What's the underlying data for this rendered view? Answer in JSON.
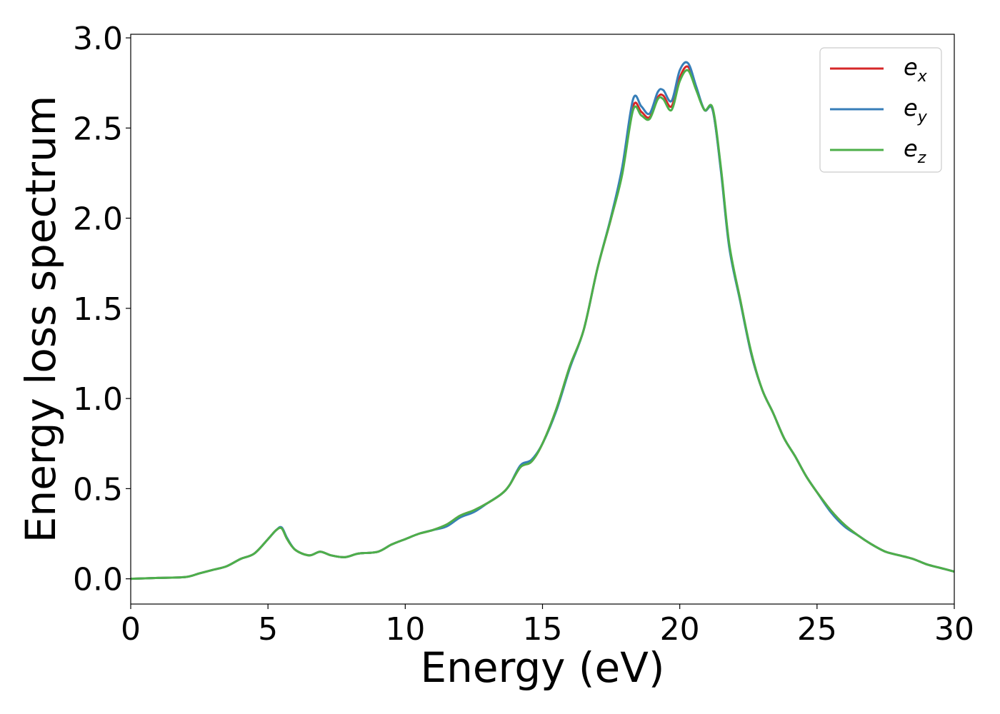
{
  "chart_data": {
    "type": "line",
    "title": "",
    "xlabel": "Energy (eV)",
    "ylabel": "Energy loss spectrum",
    "xlim": [
      0,
      30
    ],
    "ylim": [
      -0.14,
      3.02
    ],
    "xticks": [
      0,
      5,
      10,
      15,
      20,
      25,
      30
    ],
    "xtick_labels": [
      "0",
      "5",
      "10",
      "15",
      "20",
      "25",
      "30"
    ],
    "yticks": [
      0.0,
      0.5,
      1.0,
      1.5,
      2.0,
      2.5,
      3.0
    ],
    "ytick_labels": [
      "0.0",
      "0.5",
      "1.0",
      "1.5",
      "2.0",
      "2.5",
      "3.0"
    ],
    "grid": false,
    "legend_position": "top-right",
    "series": [
      {
        "name": "e_x",
        "legend_base": "e",
        "legend_sub": "x",
        "color": "#d62728",
        "x": [
          0,
          1,
          2,
          2.5,
          3,
          3.5,
          4,
          4.5,
          5,
          5.3,
          5.5,
          5.7,
          6,
          6.5,
          6.9,
          7.3,
          7.8,
          8.3,
          9,
          9.5,
          10,
          10.5,
          11,
          11.5,
          12,
          12.5,
          13,
          13.5,
          13.8,
          14.2,
          14.6,
          15,
          15.5,
          16,
          16.5,
          17,
          17.5,
          17.9,
          18.3,
          18.6,
          18.9,
          19.2,
          19.4,
          19.7,
          20,
          20.3,
          20.6,
          20.9,
          21.2,
          21.5,
          21.8,
          22.2,
          22.6,
          23,
          23.4,
          23.8,
          24.2,
          24.6,
          25,
          25.5,
          26,
          26.5,
          27,
          27.5,
          28,
          28.5,
          29,
          29.5,
          30
        ],
        "values": [
          0,
          0.005,
          0.01,
          0.03,
          0.05,
          0.07,
          0.11,
          0.14,
          0.22,
          0.27,
          0.28,
          0.22,
          0.16,
          0.13,
          0.15,
          0.13,
          0.12,
          0.14,
          0.15,
          0.19,
          0.22,
          0.25,
          0.27,
          0.3,
          0.35,
          0.38,
          0.42,
          0.47,
          0.52,
          0.62,
          0.65,
          0.75,
          0.94,
          1.18,
          1.38,
          1.72,
          2.0,
          2.25,
          2.62,
          2.59,
          2.56,
          2.67,
          2.68,
          2.62,
          2.78,
          2.84,
          2.72,
          2.6,
          2.6,
          2.27,
          1.85,
          1.55,
          1.25,
          1.05,
          0.92,
          0.78,
          0.68,
          0.57,
          0.48,
          0.38,
          0.3,
          0.24,
          0.19,
          0.15,
          0.13,
          0.11,
          0.08,
          0.06,
          0.04
        ]
      },
      {
        "name": "e_y",
        "legend_base": "e",
        "legend_sub": "y",
        "color": "#377eb8",
        "x": [
          0,
          1,
          2,
          2.5,
          3,
          3.5,
          4,
          4.5,
          5,
          5.3,
          5.5,
          5.7,
          6,
          6.5,
          6.9,
          7.3,
          7.8,
          8.3,
          9,
          9.5,
          10,
          10.5,
          11,
          11.5,
          12,
          12.5,
          13,
          13.5,
          13.8,
          14.2,
          14.6,
          15,
          15.5,
          16,
          16.5,
          17,
          17.5,
          17.9,
          18.3,
          18.6,
          18.9,
          19.2,
          19.4,
          19.7,
          20,
          20.3,
          20.6,
          20.9,
          21.2,
          21.5,
          21.8,
          22.2,
          22.6,
          23,
          23.4,
          23.8,
          24.2,
          24.6,
          25,
          25.5,
          26,
          26.5,
          27,
          27.5,
          28,
          28.5,
          29,
          29.5,
          30
        ],
        "values": [
          0,
          0.005,
          0.01,
          0.03,
          0.05,
          0.07,
          0.11,
          0.14,
          0.22,
          0.27,
          0.285,
          0.225,
          0.16,
          0.13,
          0.15,
          0.13,
          0.12,
          0.14,
          0.15,
          0.19,
          0.22,
          0.25,
          0.27,
          0.29,
          0.34,
          0.37,
          0.42,
          0.47,
          0.52,
          0.63,
          0.66,
          0.75,
          0.93,
          1.17,
          1.38,
          1.72,
          2.01,
          2.28,
          2.66,
          2.62,
          2.58,
          2.7,
          2.71,
          2.65,
          2.82,
          2.86,
          2.73,
          2.6,
          2.6,
          2.26,
          1.84,
          1.54,
          1.25,
          1.05,
          0.92,
          0.78,
          0.68,
          0.57,
          0.48,
          0.37,
          0.29,
          0.24,
          0.19,
          0.15,
          0.13,
          0.11,
          0.08,
          0.06,
          0.04
        ]
      },
      {
        "name": "e_z",
        "legend_base": "e",
        "legend_sub": "z",
        "color": "#4daf4a",
        "x": [
          0,
          1,
          2,
          2.5,
          3,
          3.5,
          4,
          4.5,
          5,
          5.3,
          5.5,
          5.7,
          6,
          6.5,
          6.9,
          7.3,
          7.8,
          8.3,
          9,
          9.5,
          10,
          10.5,
          11,
          11.5,
          12,
          12.5,
          13,
          13.5,
          13.8,
          14.2,
          14.6,
          15,
          15.5,
          16,
          16.5,
          17,
          17.5,
          17.9,
          18.3,
          18.6,
          18.9,
          19.2,
          19.4,
          19.7,
          20,
          20.3,
          20.6,
          20.9,
          21.2,
          21.5,
          21.8,
          22.2,
          22.6,
          23,
          23.4,
          23.8,
          24.2,
          24.6,
          25,
          25.5,
          26,
          26.5,
          27,
          27.5,
          28,
          28.5,
          29,
          29.5,
          30
        ],
        "values": [
          0,
          0.005,
          0.01,
          0.03,
          0.05,
          0.07,
          0.11,
          0.14,
          0.22,
          0.27,
          0.28,
          0.22,
          0.16,
          0.13,
          0.15,
          0.13,
          0.12,
          0.14,
          0.15,
          0.19,
          0.22,
          0.25,
          0.27,
          0.3,
          0.35,
          0.38,
          0.42,
          0.47,
          0.52,
          0.62,
          0.65,
          0.75,
          0.94,
          1.18,
          1.38,
          1.72,
          2.0,
          2.24,
          2.6,
          2.57,
          2.55,
          2.66,
          2.66,
          2.6,
          2.76,
          2.82,
          2.71,
          2.6,
          2.61,
          2.28,
          1.86,
          1.55,
          1.26,
          1.05,
          0.92,
          0.78,
          0.68,
          0.57,
          0.48,
          0.38,
          0.3,
          0.24,
          0.19,
          0.15,
          0.13,
          0.11,
          0.08,
          0.06,
          0.04
        ]
      }
    ]
  }
}
